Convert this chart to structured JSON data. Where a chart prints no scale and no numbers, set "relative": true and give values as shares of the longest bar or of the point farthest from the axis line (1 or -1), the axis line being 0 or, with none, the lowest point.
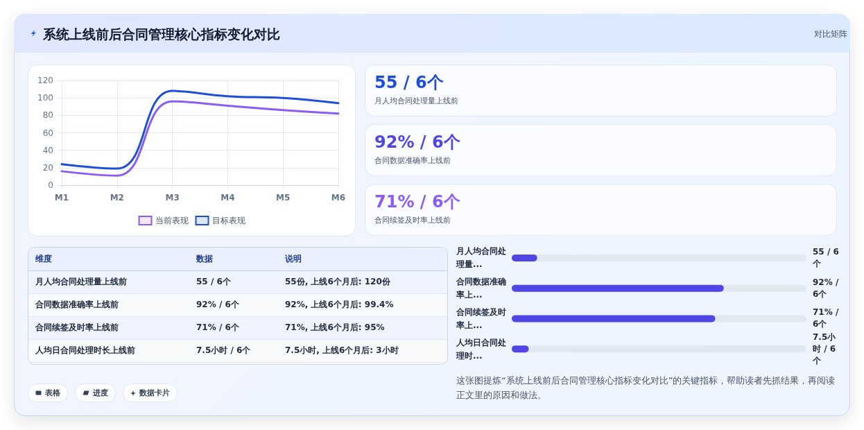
{
  "chart_data": [
    {
      "type": "line",
      "title": "系统上线前后合同管理核心指标变化对比",
      "annotations": [
        "对比矩阵"
      ],
      "categories": [
        "M1",
        "M2",
        "M3",
        "M4",
        "M5",
        "M6"
      ],
      "series": [
        {
          "name": "当前表现",
          "color": "#8b5cf6",
          "values": [
            16,
            11,
            96,
            91,
            86,
            82
          ]
        },
        {
          "name": "目标表现",
          "color": "#1d4ed8",
          "values": [
            24,
            19,
            108,
            102,
            100,
            94
          ]
        }
      ],
      "ylim": [
        0,
        120
      ],
      "yticks": [
        0,
        20,
        40,
        60,
        80,
        100,
        120
      ],
      "grid": true,
      "legend": "bottom",
      "marker": "none"
    },
    {
      "type": "other",
      "title": "55 / 6个",
      "subtitle": "月人均合同处理量上线前",
      "color": "#1d4ed8"
    },
    {
      "type": "other",
      "title": "92% / 6个",
      "subtitle": "合同数据准确率上线前",
      "color": "#4f46e5"
    },
    {
      "type": "other",
      "title": "71% / 6个",
      "subtitle": "合同续签及时率上线前",
      "color": "#8b5cf6"
    },
    {
      "type": "other",
      "categories": [
        "维度",
        "数据",
        "说明"
      ],
      "cell_labels": [
        [
          "月人均合同处理量上线前",
          "55 / 6个",
          "55份, 上线6个月后: 120份"
        ],
        [
          "合同数据准确率上线前",
          "92% / 6个",
          "92%, 上线6个月后: 99.4%"
        ],
        [
          "合同续签及时率上线前",
          "71% / 6个",
          "71%, 上线6个月后: 95%"
        ],
        [
          "人均日合同处理时长上线前",
          "7.5小时 / 6个",
          "7.5小时, 上线6个月后: 3小时"
        ]
      ],
      "annotations": [
        "表格",
        "进度",
        "数据卡片"
      ]
    },
    {
      "type": "bar",
      "orientation": "horizontal",
      "relative": true,
      "categories": [
        "月人均合同处理量...",
        "合同数据准确率上...",
        "合同续签及时率上...",
        "人均日合同处理时..."
      ],
      "values": [
        0.12,
        1,
        0.96,
        0.08
      ],
      "color": "#5046e5",
      "annotations": [
        "55 / 6个",
        "92% / 6个",
        "71% / 6个",
        "7.5小时 / 6个",
        "这张图提炼“系统上线前后合同管理核心指标变化对比”的关键指标，帮助读者先抓结果，再阅读正文里的原因和做法。"
      ]
    }
  ]
}
